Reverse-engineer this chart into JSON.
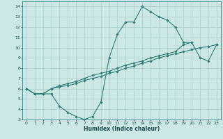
{
  "title": "",
  "xlabel": "Humidex (Indice chaleur)",
  "xlim": [
    -0.5,
    23.5
  ],
  "ylim": [
    3,
    14.5
  ],
  "xticks": [
    0,
    1,
    2,
    3,
    4,
    5,
    6,
    7,
    8,
    9,
    10,
    11,
    12,
    13,
    14,
    15,
    16,
    17,
    18,
    19,
    20,
    21,
    22,
    23
  ],
  "yticks": [
    3,
    4,
    5,
    6,
    7,
    8,
    9,
    10,
    11,
    12,
    13,
    14
  ],
  "background_color": "#cce8e4",
  "grid_color": "#aaccca",
  "line_color": "#2e7d74",
  "curves": [
    {
      "x": [
        0,
        1,
        2,
        3,
        4,
        5,
        6,
        7,
        8,
        9,
        10,
        11,
        12,
        13,
        14,
        15,
        16,
        17,
        18,
        19,
        20
      ],
      "y": [
        6.0,
        5.5,
        5.5,
        5.5,
        4.3,
        3.7,
        3.3,
        3.0,
        3.3,
        4.7,
        9.0,
        11.3,
        12.5,
        12.5,
        14.0,
        13.5,
        13.0,
        12.7,
        12.0,
        10.5,
        10.5
      ]
    },
    {
      "x": [
        0,
        1,
        2,
        3,
        4,
        5,
        6,
        7,
        8,
        9,
        10,
        11,
        12,
        13,
        14,
        15,
        16,
        17,
        18,
        19,
        20,
        21,
        22,
        23
      ],
      "y": [
        6.0,
        5.5,
        5.5,
        6.0,
        6.2,
        6.3,
        6.5,
        6.8,
        7.0,
        7.2,
        7.5,
        7.7,
        8.0,
        8.2,
        8.5,
        8.7,
        9.0,
        9.2,
        9.4,
        9.6,
        9.8,
        10.0,
        10.1,
        10.3
      ]
    },
    {
      "x": [
        0,
        1,
        2,
        3,
        4,
        5,
        6,
        7,
        8,
        9,
        10,
        11,
        12,
        13,
        14,
        15,
        16,
        17,
        18,
        19,
        20,
        21,
        22,
        23
      ],
      "y": [
        6.0,
        5.5,
        5.5,
        6.0,
        6.3,
        6.5,
        6.7,
        7.0,
        7.3,
        7.5,
        7.7,
        8.0,
        8.3,
        8.5,
        8.7,
        9.0,
        9.2,
        9.4,
        9.6,
        10.3,
        10.5,
        9.0,
        8.7,
        10.3
      ]
    }
  ]
}
